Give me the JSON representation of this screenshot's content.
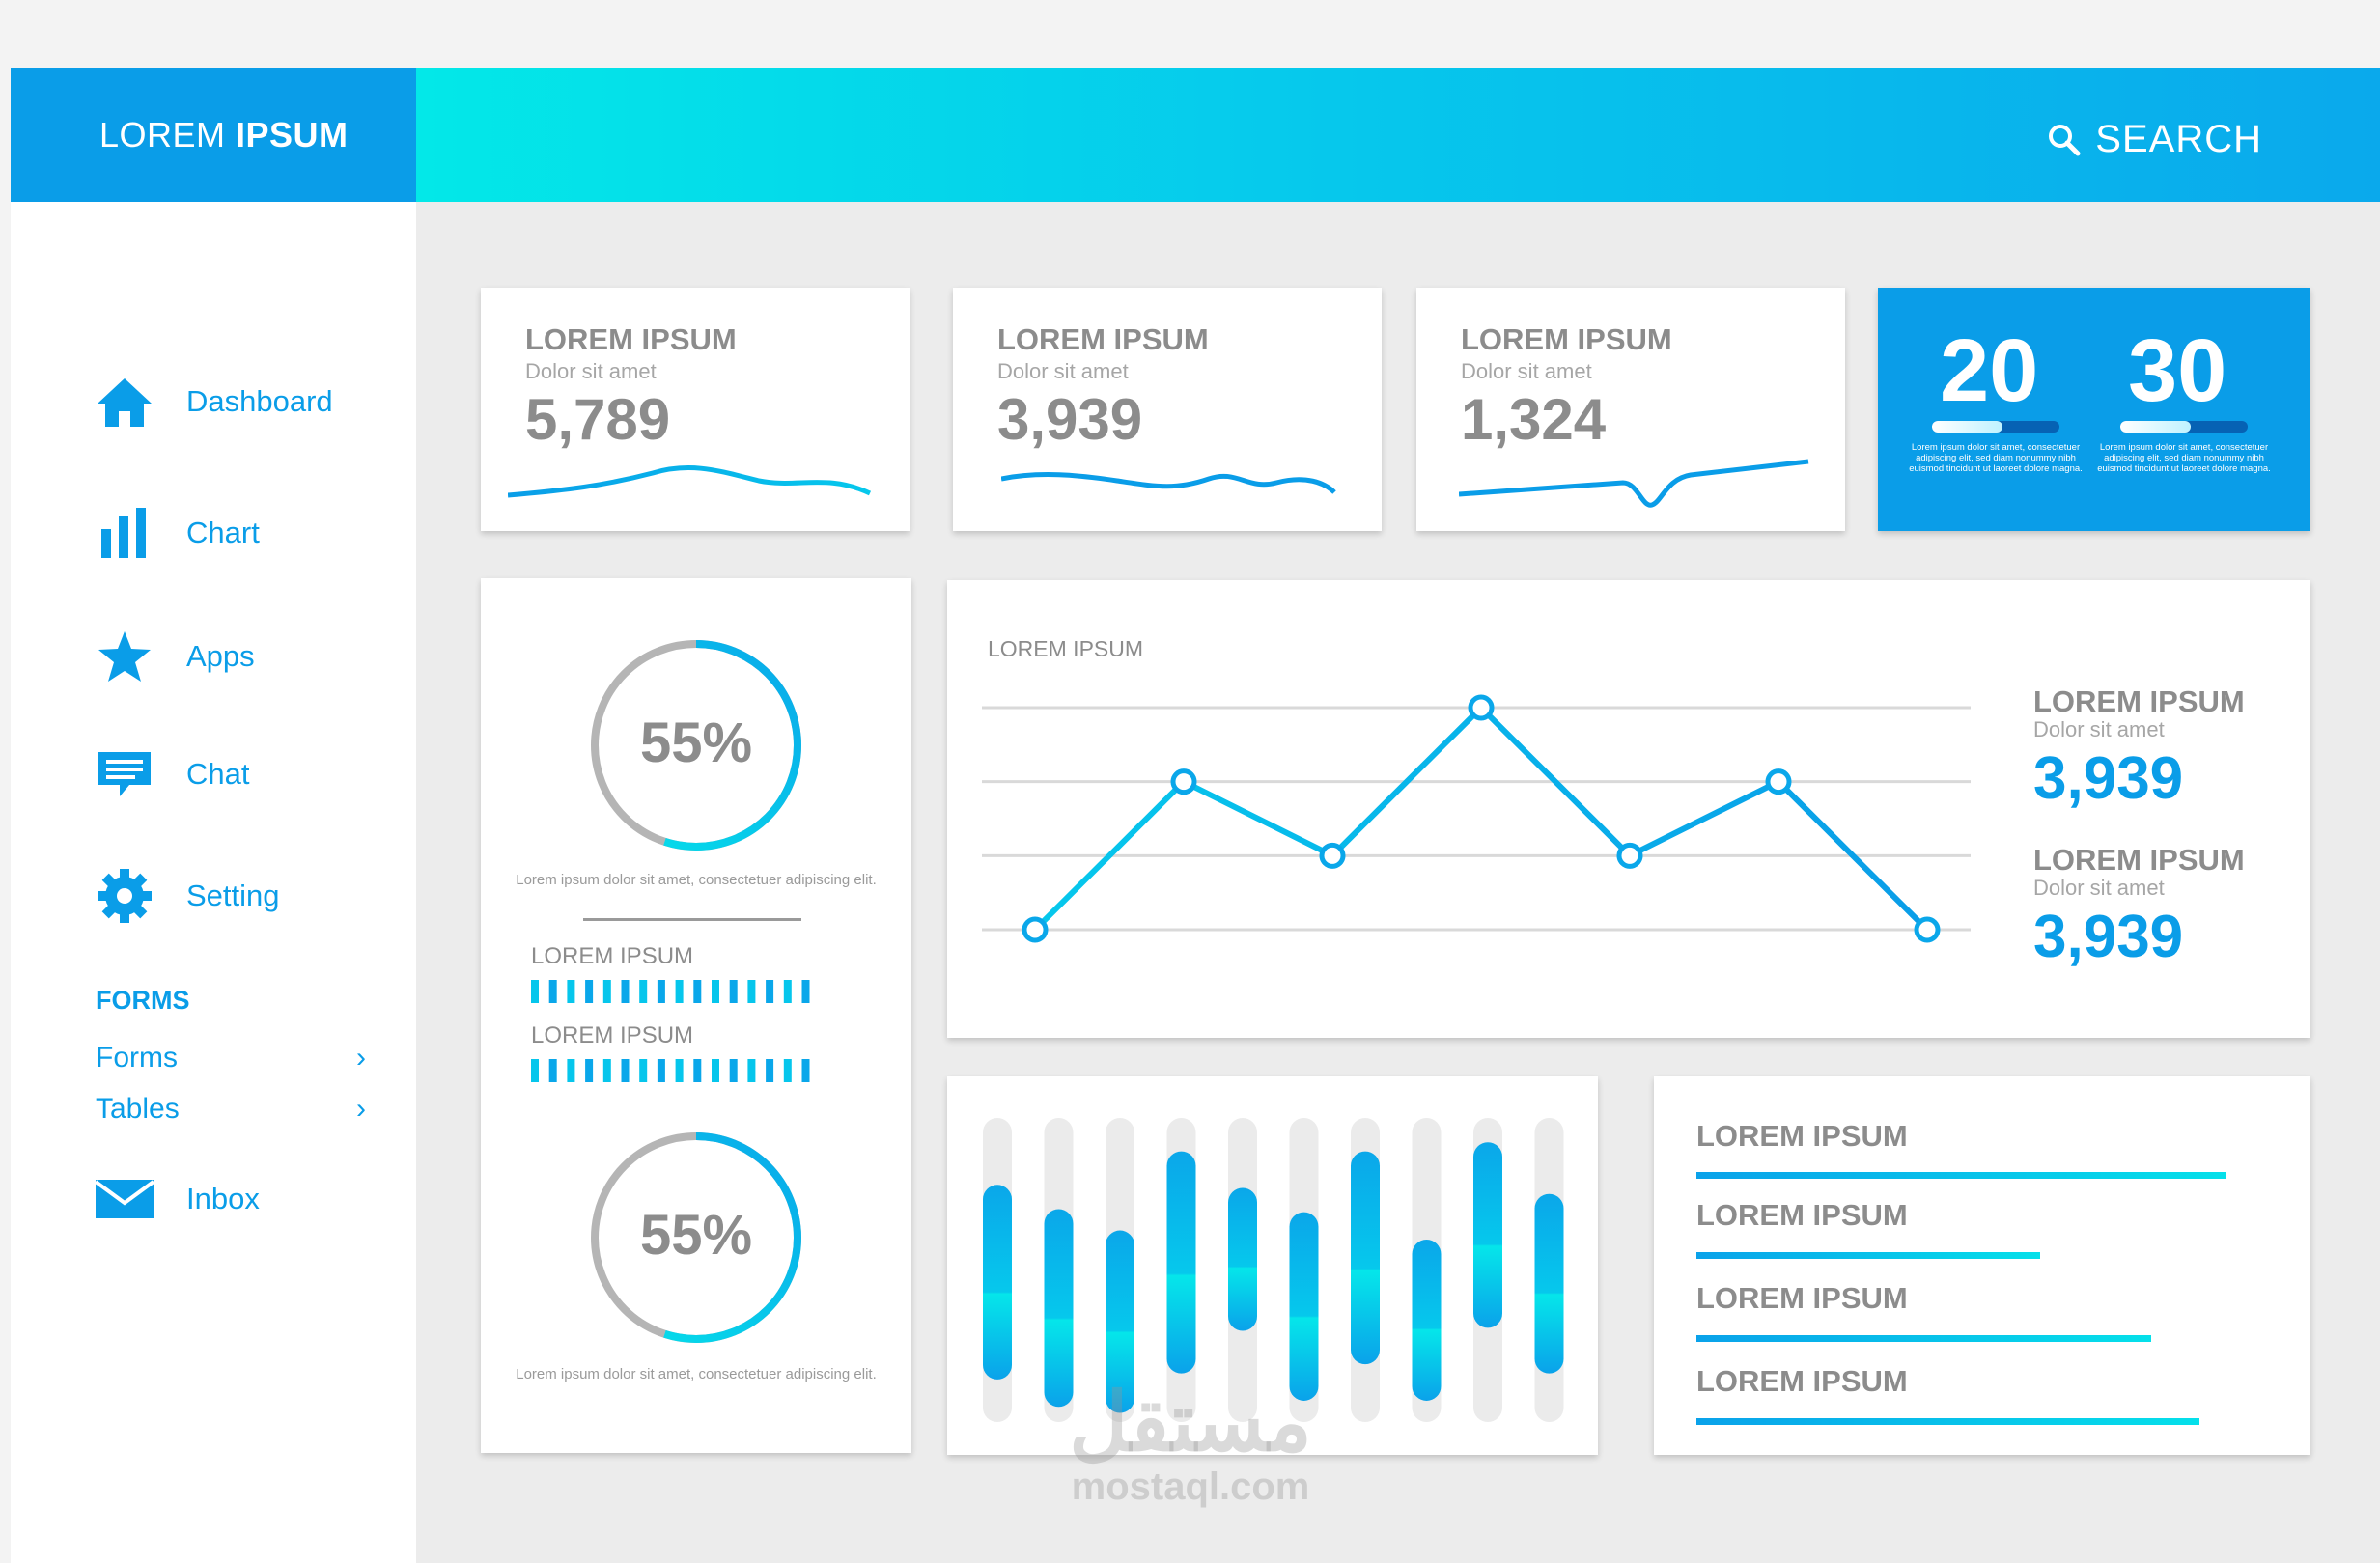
{
  "brand": {
    "title_light": "LOREM ",
    "title_bold": "IPSUM"
  },
  "header": {
    "search_label": "SEARCH"
  },
  "sidebar": {
    "items": [
      {
        "label": "Dashboard",
        "icon": "home-icon"
      },
      {
        "label": "Chart",
        "icon": "bar-chart-icon"
      },
      {
        "label": "Apps",
        "icon": "star-icon"
      },
      {
        "label": "Chat",
        "icon": "chat-icon"
      },
      {
        "label": "Setting",
        "icon": "gear-icon"
      }
    ],
    "section_title": "FORMS",
    "sub_items": [
      {
        "label": "Forms",
        "arrow": "›"
      },
      {
        "label": "Tables",
        "arrow": "›"
      }
    ],
    "inbox": {
      "label": "Inbox",
      "icon": "envelope-icon"
    }
  },
  "stats": [
    {
      "title": "LOREM IPSUM",
      "subtitle": "Dolor sit amet",
      "value": "5,789"
    },
    {
      "title": "LOREM IPSUM",
      "subtitle": "Dolor sit amet",
      "value": "3,939"
    },
    {
      "title": "LOREM IPSUM",
      "subtitle": "Dolor sit amet",
      "value": "1,324"
    }
  ],
  "counters": [
    {
      "value": "20",
      "progress": 0.55,
      "text": "Lorem ipsum dolor sit amet, consectetuer adipiscing elit, sed diam nonummy nibh euismod tincidunt ut laoreet dolore magna."
    },
    {
      "value": "30",
      "progress": 0.55,
      "text": "Lorem ipsum dolor sit amet, consectetuer adipiscing elit, sed diam nonummy nibh euismod tincidunt ut laoreet dolore magna."
    }
  ],
  "gauges": [
    {
      "value": "55%",
      "fraction": 0.55,
      "text": "Lorem ipsum dolor sit amet, consectetuer adipiscing elit."
    },
    {
      "value": "55%",
      "fraction": 0.55,
      "text": "Lorem ipsum dolor sit amet, consectetuer adipiscing elit."
    }
  ],
  "gauge_labels": [
    "LOREM IPSUM",
    "LOREM IPSUM"
  ],
  "line_chart_title": "LOREM IPSUM",
  "side_stats": [
    {
      "title": "LOREM IPSUM",
      "subtitle": "Dolor sit amet",
      "value": "3,939"
    },
    {
      "title": "LOREM IPSUM",
      "subtitle": "Dolor sit amet",
      "value": "3,939"
    }
  ],
  "hbars": [
    {
      "label": "LOREM IPSUM",
      "fraction": 1.0
    },
    {
      "label": "LOREM IPSUM",
      "fraction": 0.65
    },
    {
      "label": "LOREM IPSUM",
      "fraction": 0.86
    },
    {
      "label": "LOREM IPSUM",
      "fraction": 0.95
    }
  ],
  "chart_data": [
    {
      "type": "line",
      "title": "LOREM IPSUM",
      "x": [
        1,
        2,
        3,
        4,
        5,
        6,
        7
      ],
      "values": [
        0,
        2,
        1,
        3,
        1,
        2,
        0
      ],
      "ylim": [
        0,
        3
      ],
      "grid": true
    },
    {
      "type": "bar",
      "categories": [
        "1",
        "2",
        "3",
        "4",
        "5",
        "6",
        "7",
        "8",
        "9",
        "10"
      ],
      "ranges": [
        [
          0.22,
          0.86
        ],
        [
          0.3,
          0.95
        ],
        [
          0.37,
          0.97
        ],
        [
          0.11,
          0.84
        ],
        [
          0.23,
          0.7
        ],
        [
          0.31,
          0.93
        ],
        [
          0.11,
          0.81
        ],
        [
          0.4,
          0.93
        ],
        [
          0.08,
          0.69
        ],
        [
          0.25,
          0.84
        ]
      ],
      "ylim": [
        0,
        1
      ]
    }
  ],
  "watermark": {
    "arabic": "مستقل",
    "latin": "mostaql.com"
  },
  "colors": {
    "accent": "#0a9de8",
    "cyan": "#05e3ea",
    "gray": "#8c8c8c"
  }
}
